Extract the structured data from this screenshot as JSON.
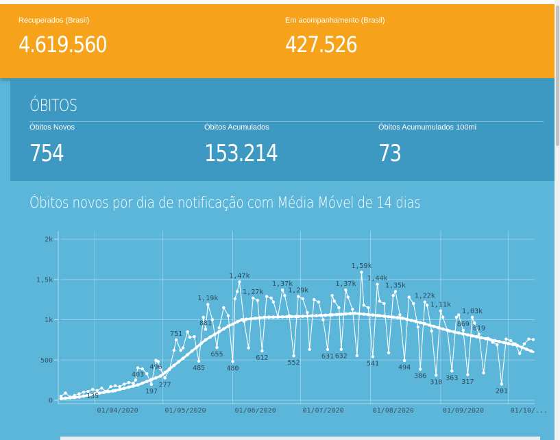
{
  "recuperados": {
    "label": "Recuperados (Brasil)",
    "value": "4.619.560"
  },
  "acompanhamento": {
    "label": "Em acompanhamento (Brasil)",
    "value": "427.526"
  },
  "obitos": {
    "title": "ÓBITOS",
    "novos": {
      "label": "Óbitos Novos",
      "value": "754"
    },
    "acumulados": {
      "label": "Óbitos Acumulados",
      "value": "153.214"
    },
    "por100mi": {
      "label": "Óbitos Acumumulados 100mi",
      "value": "73"
    }
  },
  "chart_title": "Óbitos novos por dia de notificação com Média Móvel de 14 dias",
  "colors": {
    "orange": "#f6a31b",
    "deaths_bg": "#3e99c2",
    "chart_bg": "#5bb6da",
    "series": "#ffffff"
  },
  "chart_data": {
    "type": "line",
    "title": "Óbitos novos por dia de notificação com Média Móvel de 14 dias",
    "xlabel": "",
    "ylabel": "",
    "x_range": [
      "2020-03-17",
      "2020-10-12"
    ],
    "y_ticks": [
      {
        "value": 0,
        "label": "0"
      },
      {
        "value": 500,
        "label": "500"
      },
      {
        "value": 1000,
        "label": "1k"
      },
      {
        "value": 1500,
        "label": "1,5k"
      },
      {
        "value": 2000,
        "label": "2k"
      }
    ],
    "ylim": [
      0,
      2000
    ],
    "x_ticks": [
      {
        "date": "2020-04-01",
        "label": "01/04/2020"
      },
      {
        "date": "2020-05-01",
        "label": "01/05/2020"
      },
      {
        "date": "2020-06-01",
        "label": "01/06/2020"
      },
      {
        "date": "2020-07-01",
        "label": "01/07/2020"
      },
      {
        "date": "2020-08-01",
        "label": "01/08/2020"
      },
      {
        "date": "2020-09-01",
        "label": "01/09/2020"
      },
      {
        "date": "2020-10-01",
        "label": "01/10/..."
      }
    ],
    "grid": true,
    "series": [
      {
        "role": "daily",
        "points": [
          [
            "2020-03-17",
            50
          ],
          [
            "2020-03-19",
            90
          ],
          [
            "2020-03-21",
            40
          ],
          [
            "2020-03-23",
            60
          ],
          [
            "2020-03-25",
            80
          ],
          [
            "2020-03-27",
            100
          ],
          [
            "2020-03-29",
            110
          ],
          [
            "2020-03-31",
            135
          ],
          [
            "2020-04-02",
            120
          ],
          [
            "2020-04-04",
            150
          ],
          [
            "2020-04-06",
            110
          ],
          [
            "2020-04-08",
            170
          ],
          [
            "2020-04-10",
            180
          ],
          [
            "2020-04-12",
            170
          ],
          [
            "2020-04-14",
            200
          ],
          [
            "2020-04-16",
            220
          ],
          [
            "2020-04-18",
            210
          ],
          [
            "2020-04-19",
            250
          ],
          [
            "2020-04-20",
            403
          ],
          [
            "2020-04-22",
            390
          ],
          [
            "2020-04-24",
            330
          ],
          [
            "2020-04-26",
            197
          ],
          [
            "2020-04-28",
            496
          ],
          [
            "2020-04-29",
            480
          ],
          [
            "2020-04-30",
            390
          ],
          [
            "2020-05-02",
            277
          ],
          [
            "2020-05-04",
            380
          ],
          [
            "2020-05-06",
            620
          ],
          [
            "2020-05-07",
            751
          ],
          [
            "2020-05-09",
            620
          ],
          [
            "2020-05-10",
            650
          ],
          [
            "2020-05-12",
            850
          ],
          [
            "2020-05-13",
            781
          ],
          [
            "2020-05-15",
            790
          ],
          [
            "2020-05-17",
            485
          ],
          [
            "2020-05-19",
            1030
          ],
          [
            "2020-05-20",
            881
          ],
          [
            "2020-05-21",
            1190
          ],
          [
            "2020-05-23",
            1000
          ],
          [
            "2020-05-25",
            655
          ],
          [
            "2020-05-26",
            900
          ],
          [
            "2020-05-28",
            1150
          ],
          [
            "2020-05-30",
            1050
          ],
          [
            "2020-06-01",
            480
          ],
          [
            "2020-06-02",
            1260
          ],
          [
            "2020-06-03",
            1350
          ],
          [
            "2020-06-04",
            1470
          ],
          [
            "2020-06-06",
            980
          ],
          [
            "2020-06-08",
            650
          ],
          [
            "2020-06-10",
            1270
          ],
          [
            "2020-06-12",
            1240
          ],
          [
            "2020-06-14",
            612
          ],
          [
            "2020-06-16",
            1290
          ],
          [
            "2020-06-18",
            1270
          ],
          [
            "2020-06-19",
            1220
          ],
          [
            "2020-06-21",
            1040
          ],
          [
            "2020-06-23",
            1370
          ],
          [
            "2020-06-24",
            1300
          ],
          [
            "2020-06-26",
            1050
          ],
          [
            "2020-06-28",
            552
          ],
          [
            "2020-06-30",
            1290
          ],
          [
            "2020-07-02",
            1260
          ],
          [
            "2020-07-04",
            1090
          ],
          [
            "2020-07-05",
            631
          ],
          [
            "2020-07-07",
            1250
          ],
          [
            "2020-07-09",
            1220
          ],
          [
            "2020-07-11",
            1000
          ],
          [
            "2020-07-13",
            631
          ],
          [
            "2020-07-15",
            1300
          ],
          [
            "2020-07-16",
            1230
          ],
          [
            "2020-07-18",
            1150
          ],
          [
            "2020-07-19",
            632
          ],
          [
            "2020-07-21",
            1370
          ],
          [
            "2020-07-22",
            1280
          ],
          [
            "2020-07-24",
            1130
          ],
          [
            "2020-07-26",
            555
          ],
          [
            "2020-07-28",
            1590
          ],
          [
            "2020-07-29",
            1180
          ],
          [
            "2020-07-31",
            1150
          ],
          [
            "2020-08-02",
            541
          ],
          [
            "2020-08-04",
            1440
          ],
          [
            "2020-08-05",
            1230
          ],
          [
            "2020-08-07",
            1200
          ],
          [
            "2020-08-09",
            590
          ],
          [
            "2020-08-11",
            1300
          ],
          [
            "2020-08-12",
            1350
          ],
          [
            "2020-08-14",
            1060
          ],
          [
            "2020-08-16",
            494
          ],
          [
            "2020-08-18",
            1280
          ],
          [
            "2020-08-20",
            1200
          ],
          [
            "2020-08-22",
            910
          ],
          [
            "2020-08-23",
            386
          ],
          [
            "2020-08-25",
            1220
          ],
          [
            "2020-08-26",
            1180
          ],
          [
            "2020-08-28",
            860
          ],
          [
            "2020-08-30",
            310
          ],
          [
            "2020-09-01",
            1110
          ],
          [
            "2020-09-02",
            1030
          ],
          [
            "2020-09-04",
            870
          ],
          [
            "2020-09-06",
            363
          ],
          [
            "2020-09-08",
            1030
          ],
          [
            "2020-09-09",
            1060
          ],
          [
            "2020-09-11",
            869
          ],
          [
            "2020-09-13",
            317
          ],
          [
            "2020-09-15",
            1030
          ],
          [
            "2020-09-16",
            960
          ],
          [
            "2020-09-18",
            819
          ],
          [
            "2020-09-20",
            340
          ],
          [
            "2020-09-22",
            770
          ],
          [
            "2020-09-24",
            720
          ],
          [
            "2020-09-26",
            690
          ],
          [
            "2020-09-28",
            201
          ],
          [
            "2020-09-30",
            760
          ],
          [
            "2020-10-02",
            740
          ],
          [
            "2020-10-04",
            700
          ],
          [
            "2020-10-06",
            580
          ],
          [
            "2020-10-08",
            700
          ],
          [
            "2020-10-10",
            760
          ],
          [
            "2020-10-12",
            754
          ]
        ]
      },
      {
        "role": "moving-average-14d",
        "points": [
          [
            "2020-03-17",
            20
          ],
          [
            "2020-03-25",
            40
          ],
          [
            "2020-04-01",
            80
          ],
          [
            "2020-04-10",
            120
          ],
          [
            "2020-04-20",
            190
          ],
          [
            "2020-04-30",
            300
          ],
          [
            "2020-05-10",
            520
          ],
          [
            "2020-05-20",
            750
          ],
          [
            "2020-05-30",
            920
          ],
          [
            "2020-06-05",
            1000
          ],
          [
            "2020-06-15",
            1030
          ],
          [
            "2020-06-30",
            1040
          ],
          [
            "2020-07-15",
            1060
          ],
          [
            "2020-07-25",
            1080
          ],
          [
            "2020-08-05",
            1050
          ],
          [
            "2020-08-15",
            1020
          ],
          [
            "2020-08-25",
            950
          ],
          [
            "2020-09-05",
            860
          ],
          [
            "2020-09-15",
            800
          ],
          [
            "2020-09-25",
            740
          ],
          [
            "2020-10-05",
            680
          ],
          [
            "2020-10-12",
            600
          ]
        ]
      }
    ],
    "annotations": [
      {
        "date": "2020-03-31",
        "value": 135,
        "label": "135"
      },
      {
        "date": "2020-04-20",
        "value": 403,
        "label": "403"
      },
      {
        "date": "2020-04-26",
        "value": 197,
        "label": "197"
      },
      {
        "date": "2020-04-28",
        "value": 496,
        "label": "496"
      },
      {
        "date": "2020-05-02",
        "value": 277,
        "label": "277"
      },
      {
        "date": "2020-05-07",
        "value": 751,
        "label": "751"
      },
      {
        "date": "2020-05-17",
        "value": 485,
        "label": "485"
      },
      {
        "date": "2020-05-20",
        "value": 881,
        "label": "881"
      },
      {
        "date": "2020-05-21",
        "value": 1190,
        "label": "1,19k"
      },
      {
        "date": "2020-05-25",
        "value": 655,
        "label": "655"
      },
      {
        "date": "2020-06-01",
        "value": 480,
        "label": "480"
      },
      {
        "date": "2020-06-04",
        "value": 1470,
        "label": "1,47k"
      },
      {
        "date": "2020-06-10",
        "value": 1270,
        "label": "1,27k"
      },
      {
        "date": "2020-06-14",
        "value": 612,
        "label": "612"
      },
      {
        "date": "2020-06-23",
        "value": 1370,
        "label": "1,37k"
      },
      {
        "date": "2020-06-28",
        "value": 552,
        "label": "552"
      },
      {
        "date": "2020-06-30",
        "value": 1290,
        "label": "1,29k"
      },
      {
        "date": "2020-07-13",
        "value": 631,
        "label": "631"
      },
      {
        "date": "2020-07-19",
        "value": 632,
        "label": "632"
      },
      {
        "date": "2020-07-21",
        "value": 1370,
        "label": "1,37k"
      },
      {
        "date": "2020-07-28",
        "value": 1590,
        "label": "1,59k"
      },
      {
        "date": "2020-08-02",
        "value": 541,
        "label": "541"
      },
      {
        "date": "2020-08-04",
        "value": 1440,
        "label": "1,44k"
      },
      {
        "date": "2020-08-12",
        "value": 1350,
        "label": "1,35k"
      },
      {
        "date": "2020-08-16",
        "value": 494,
        "label": "494"
      },
      {
        "date": "2020-08-23",
        "value": 386,
        "label": "386"
      },
      {
        "date": "2020-08-25",
        "value": 1220,
        "label": "1,22k"
      },
      {
        "date": "2020-08-30",
        "value": 310,
        "label": "310"
      },
      {
        "date": "2020-09-01",
        "value": 1110,
        "label": "1,11k"
      },
      {
        "date": "2020-09-06",
        "value": 363,
        "label": "363"
      },
      {
        "date": "2020-09-11",
        "value": 869,
        "label": "869"
      },
      {
        "date": "2020-09-13",
        "value": 317,
        "label": "317"
      },
      {
        "date": "2020-09-15",
        "value": 1030,
        "label": "1,03k"
      },
      {
        "date": "2020-09-18",
        "value": 819,
        "label": "819"
      },
      {
        "date": "2020-09-28",
        "value": 201,
        "label": "201"
      }
    ]
  }
}
